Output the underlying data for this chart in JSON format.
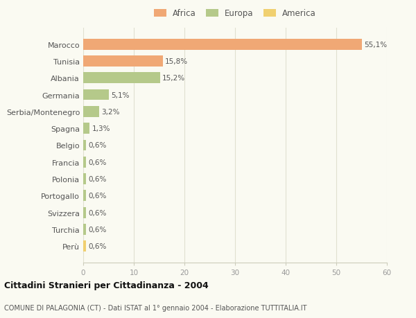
{
  "categories": [
    "Marocco",
    "Tunisia",
    "Albania",
    "Germania",
    "Serbia/Montenegro",
    "Spagna",
    "Belgio",
    "Francia",
    "Polonia",
    "Portogallo",
    "Svizzera",
    "Turchia",
    "Perù"
  ],
  "values": [
    55.1,
    15.8,
    15.2,
    5.1,
    3.2,
    1.3,
    0.6,
    0.6,
    0.6,
    0.6,
    0.6,
    0.6,
    0.6
  ],
  "labels": [
    "55,1%",
    "15,8%",
    "15,2%",
    "5,1%",
    "3,2%",
    "1,3%",
    "0,6%",
    "0,6%",
    "0,6%",
    "0,6%",
    "0,6%",
    "0,6%",
    "0,6%"
  ],
  "colors": [
    "#f0a875",
    "#f0a875",
    "#b5c98a",
    "#b5c98a",
    "#b5c98a",
    "#b5c98a",
    "#b5c98a",
    "#b5c98a",
    "#b5c98a",
    "#b5c98a",
    "#b5c98a",
    "#b5c98a",
    "#f0d070"
  ],
  "legend_labels": [
    "Africa",
    "Europa",
    "America"
  ],
  "legend_colors": [
    "#f0a875",
    "#b5c98a",
    "#f0d070"
  ],
  "title": "Cittadini Stranieri per Cittadinanza - 2004",
  "subtitle": "COMUNE DI PALAGONIA (CT) - Dati ISTAT al 1° gennaio 2004 - Elaborazione TUTTITALIA.IT",
  "xlim": [
    0,
    60
  ],
  "xticks": [
    0,
    10,
    20,
    30,
    40,
    50,
    60
  ],
  "background_color": "#fafaf2",
  "plot_bg_color": "#fafaf2",
  "grid_color": "#e0e0d0"
}
